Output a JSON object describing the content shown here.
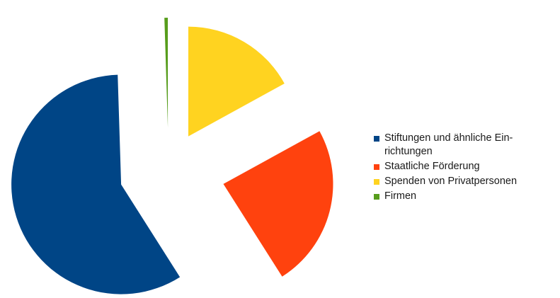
{
  "chart_data": {
    "type": "pie",
    "exploded": true,
    "start_angle_deg": 0,
    "slices": [
      {
        "label": "Spenden von Privatpersonen",
        "value": 17,
        "color": "#ffd320"
      },
      {
        "label": "Staatliche Förderung",
        "value": 24,
        "color": "#ff420e"
      },
      {
        "label": "Stiftungen und ähnliche Ein-richtungen",
        "value": 58.5,
        "color": "#004586"
      },
      {
        "label": "Firmen",
        "value": 0.5,
        "color": "#579d1c"
      }
    ],
    "legend": {
      "position": "right",
      "order": [
        {
          "label_lines": [
            "Stiftungen und ähnliche Ein-",
            "richtungen"
          ],
          "color": "#004586"
        },
        {
          "label_lines": [
            "Staatliche Förderung"
          ],
          "color": "#ff420e"
        },
        {
          "label_lines": [
            "Spenden von Privatpersonen"
          ],
          "color": "#ffd320"
        },
        {
          "label_lines": [
            "Firmen"
          ],
          "color": "#579d1c"
        }
      ]
    }
  }
}
